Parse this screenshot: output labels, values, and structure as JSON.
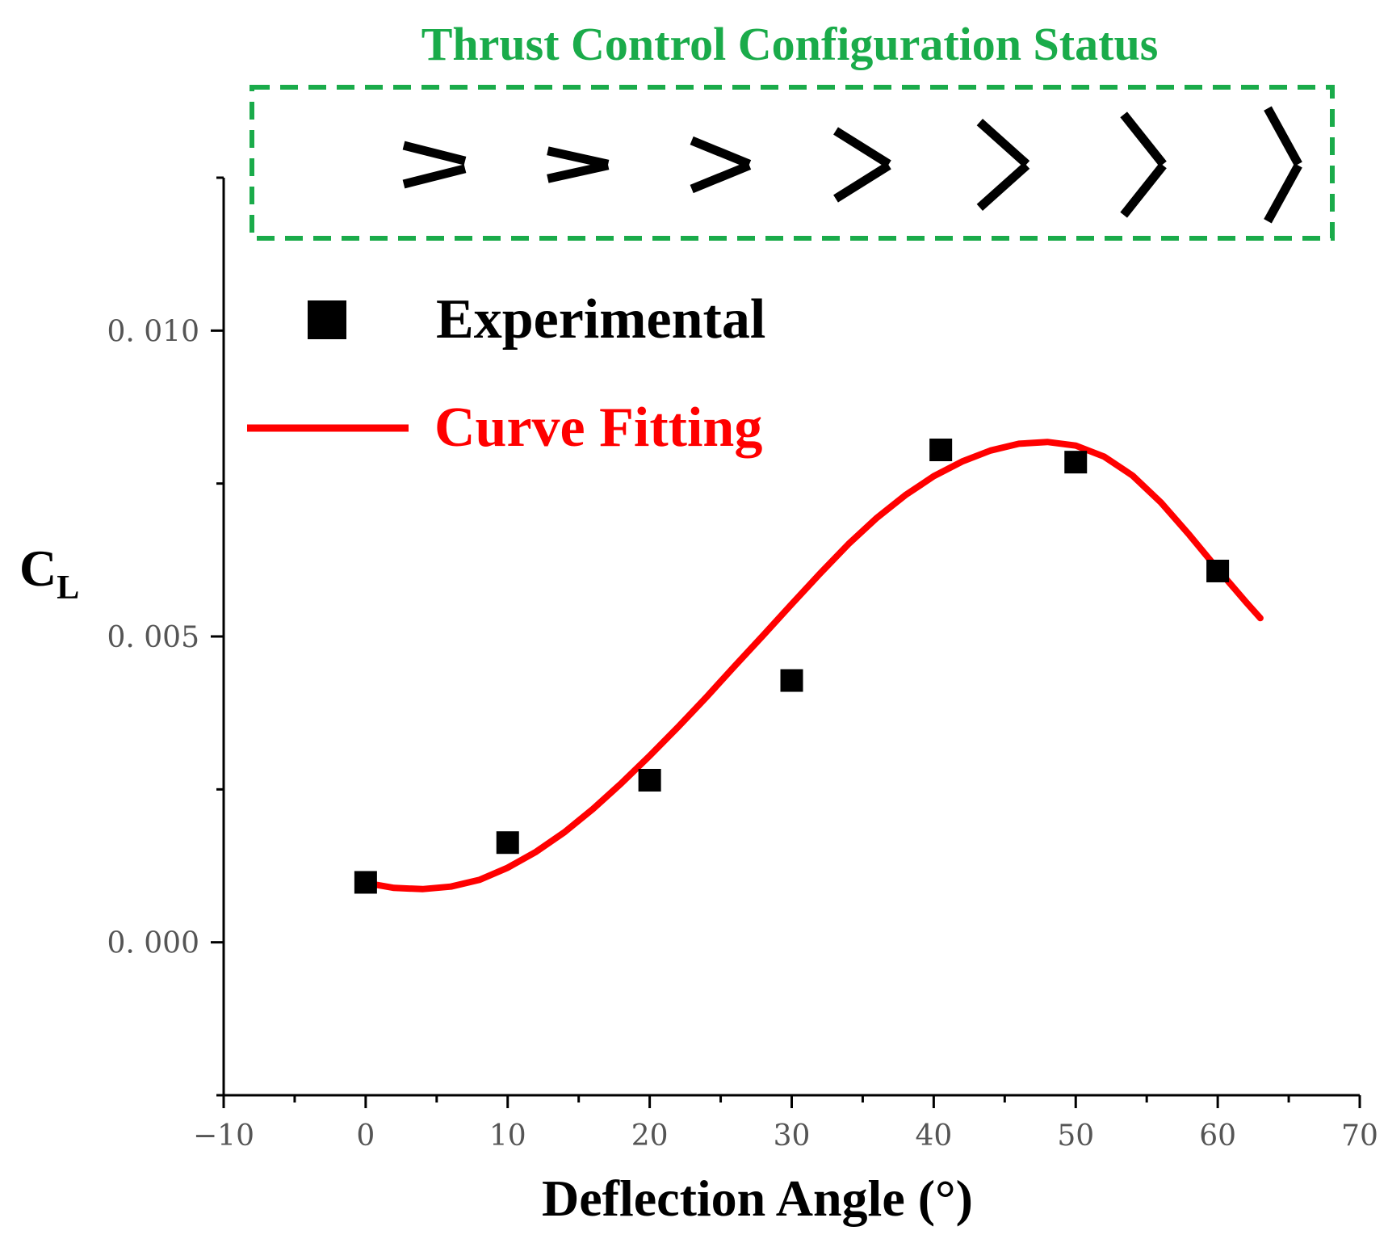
{
  "chart_data": {
    "type": "scatter",
    "title": "Thrust Control Configuration Status",
    "xlabel": "Deflection Angle (°)",
    "ylabel_main": "C",
    "ylabel_sub": "L",
    "xlim": [
      -10,
      70
    ],
    "ylim": [
      -0.0025,
      0.0125
    ],
    "x_ticks": [
      -10,
      0,
      10,
      20,
      30,
      40,
      50,
      60,
      70
    ],
    "x_tick_labels": [
      "−10",
      "0",
      "10",
      "20",
      "30",
      "40",
      "50",
      "60",
      "70"
    ],
    "y_ticks": [
      0.0,
      0.005,
      0.01
    ],
    "y_tick_labels": [
      "0. 000",
      "0. 005",
      "0. 010"
    ],
    "series": [
      {
        "name": "Experimental",
        "kind": "scatter",
        "marker": "square",
        "color": "#000000",
        "x": [
          0,
          10,
          20,
          30,
          40.5,
          50,
          60
        ],
        "y": [
          0.00098,
          0.00163,
          0.00265,
          0.00428,
          0.00805,
          0.00785,
          0.00607
        ]
      },
      {
        "name": "Curve Fitting",
        "kind": "line",
        "color": "#ff0000",
        "x": [
          0,
          2,
          4,
          6,
          8,
          10,
          12,
          14,
          16,
          18,
          20,
          22,
          24,
          26,
          28,
          30,
          32,
          34,
          36,
          38,
          40,
          42,
          44,
          46,
          48,
          50,
          52,
          54,
          56,
          58,
          60,
          62,
          63
        ],
        "y": [
          0.00097,
          0.00089,
          0.00087,
          0.00091,
          0.00102,
          0.00122,
          0.00148,
          0.0018,
          0.00218,
          0.0026,
          0.00305,
          0.00352,
          0.00401,
          0.00452,
          0.00502,
          0.00553,
          0.00603,
          0.00651,
          0.00694,
          0.00731,
          0.00762,
          0.00786,
          0.00804,
          0.00815,
          0.00818,
          0.00812,
          0.00794,
          0.00763,
          0.00719,
          0.00666,
          0.0061,
          0.00556,
          0.0053
        ]
      }
    ],
    "legend_position": "top-left",
    "grid": false
  },
  "configuration_status": {
    "states": [
      0,
      10,
      20,
      30,
      40,
      50,
      60
    ],
    "box_color": "#1aab4a",
    "title_color": "#1aab4a"
  }
}
